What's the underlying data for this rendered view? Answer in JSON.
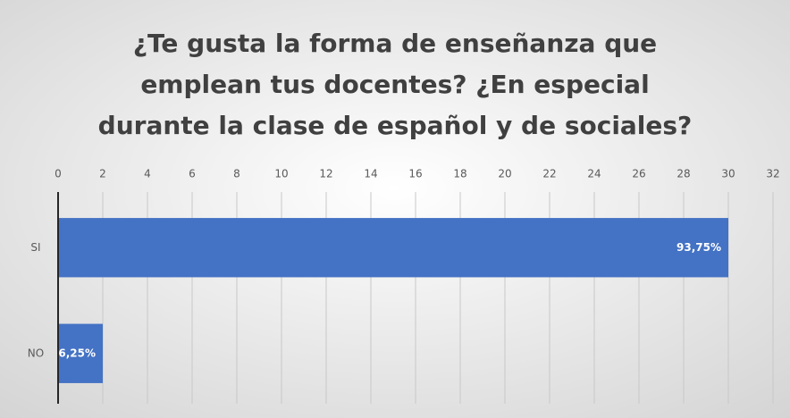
{
  "chart_data": {
    "type": "barh",
    "title": [
      "¿Te gusta la forma de enseñanza que",
      "emplean tus docentes? ¿En especial",
      "durante la clase de español y de sociales?"
    ],
    "categories": [
      "SI",
      "NO"
    ],
    "values": [
      30,
      2
    ],
    "value_labels": [
      "93,75%",
      "6,25%"
    ],
    "color": "#4472c4",
    "xlim": [
      0,
      32
    ],
    "xticks": [
      0,
      2,
      4,
      6,
      8,
      10,
      12,
      14,
      16,
      18,
      20,
      22,
      24,
      26,
      28,
      30,
      32
    ],
    "grid": true
  }
}
